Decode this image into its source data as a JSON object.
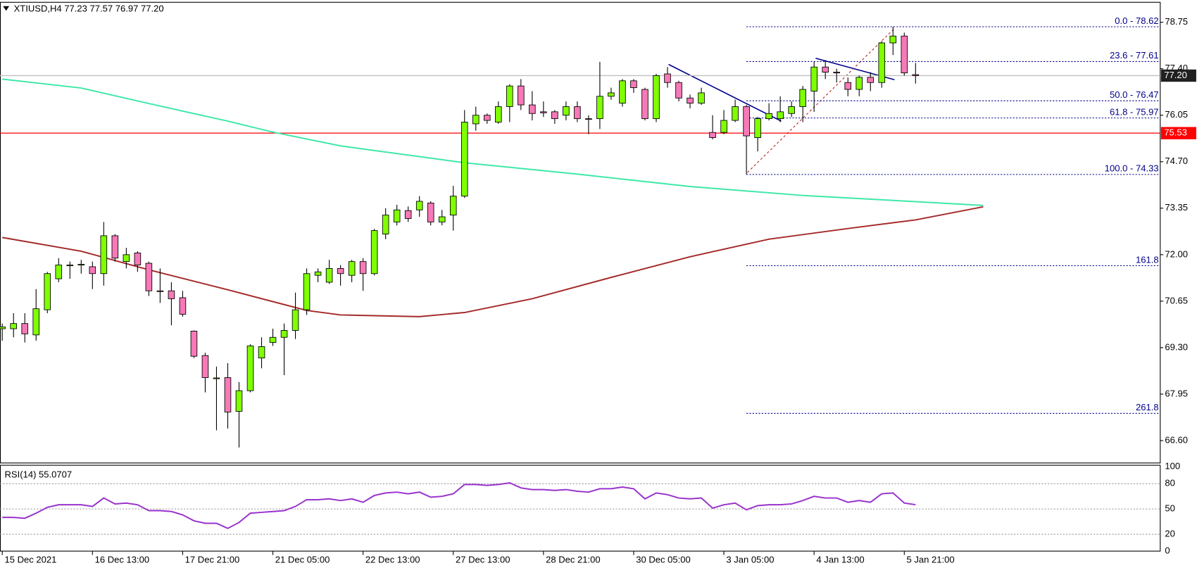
{
  "chart_data": {
    "type": "candlestick",
    "header": "XTIUSD,H4  77.23 77.57 76.97 77.20",
    "xlim": [
      -0.2,
      102.7
    ],
    "ylim": [
      65.95,
      79.33
    ],
    "xticks": [
      {
        "value": 0,
        "label": "15 Dec 2021"
      },
      {
        "value": 8,
        "label": "16 Dec 13:00"
      },
      {
        "value": 16,
        "label": "17 Dec 21:00"
      },
      {
        "value": 24,
        "label": "21 Dec 05:00"
      },
      {
        "value": 32,
        "label": "22 Dec 13:00"
      },
      {
        "value": 40,
        "label": "27 Dec 13:00"
      },
      {
        "value": 48,
        "label": "28 Dec 21:00"
      },
      {
        "value": 56,
        "label": "30 Dec 05:00"
      },
      {
        "value": 64,
        "label": "3 Jan 05:00"
      },
      {
        "value": 72,
        "label": "4 Jan 13:00"
      },
      {
        "value": 80,
        "label": "5 Jan 21:00"
      }
    ],
    "yticks": [
      78.75,
      {
        "value": 77.4,
        "label": "77.40"
      },
      76.05,
      {
        "value": 74.7,
        "label": "74.70"
      },
      73.35,
      {
        "value": 72,
        "label": "72.00"
      },
      70.65,
      {
        "value": 69.3,
        "label": "69.30"
      },
      67.95,
      {
        "value": 66.6,
        "label": "66.60"
      }
    ],
    "up_color": "#7fff00",
    "down_color": "#f779b8",
    "open": [
      69.85,
      69.85,
      70.0,
      69.67,
      70.4,
      71.3,
      71.7,
      71.7,
      71.65,
      71.45,
      72.55,
      71.8,
      72.05,
      71.75,
      70.95,
      70.95,
      70.75,
      69.78,
      69.07,
      68.4,
      68.43,
      67.45,
      68.05,
      69.0,
      69.45,
      69.6,
      69.8,
      70.4,
      71.4,
      71.2,
      71.6,
      71.4,
      71.8,
      71.45,
      72.6,
      72.95,
      73.28,
      73.3,
      73.5,
      72.95,
      73.15,
      73.7,
      75.8,
      76.05,
      75.85,
      76.3,
      76.9,
      76.35,
      76.15,
      76.15,
      76.05,
      76.3,
      75.95,
      75.95,
      76.6,
      76.4,
      77.05,
      76.8,
      75.95,
      77.25,
      77.0,
      76.55,
      76.4,
      75.55,
      75.55,
      75.9,
      76.3,
      75.4,
      75.95,
      75.95,
      76.1,
      76.3,
      76.75,
      77.45,
      77.3,
      77.0,
      76.8,
      77.15,
      77.0,
      78.15,
      78.35,
      77.23
    ],
    "high": [
      70.0,
      70.3,
      70.3,
      71.0,
      71.5,
      71.9,
      71.8,
      71.85,
      71.8,
      72.95,
      72.6,
      72.2,
      72.1,
      71.8,
      71.6,
      71.2,
      70.95,
      69.8,
      69.15,
      68.75,
      68.85,
      68.3,
      69.4,
      69.6,
      69.85,
      70.0,
      70.9,
      71.6,
      71.6,
      71.85,
      71.7,
      71.85,
      71.9,
      72.75,
      73.35,
      73.45,
      73.4,
      73.7,
      73.55,
      73.3,
      74.0,
      76.2,
      76.3,
      76.1,
      76.45,
      76.95,
      77.1,
      76.75,
      76.45,
      76.2,
      76.45,
      76.45,
      76.05,
      77.6,
      76.85,
      77.1,
      77.1,
      76.85,
      77.25,
      77.45,
      77.05,
      76.65,
      76.85,
      76.05,
      76.2,
      76.5,
      76.35,
      76.0,
      76.4,
      76.6,
      76.45,
      76.9,
      77.6,
      77.65,
      77.4,
      77.15,
      77.2,
      77.3,
      78.2,
      78.62,
      78.45,
      77.57
    ],
    "low": [
      69.5,
      69.6,
      69.45,
      69.5,
      70.3,
      71.2,
      71.3,
      71.45,
      71.0,
      71.1,
      71.8,
      71.6,
      71.5,
      70.8,
      70.6,
      69.95,
      70.2,
      69.0,
      68.0,
      66.9,
      66.95,
      66.4,
      68.0,
      68.7,
      69.35,
      68.5,
      69.55,
      70.25,
      71.2,
      71.15,
      71.1,
      71.2,
      70.95,
      71.4,
      72.45,
      72.85,
      72.95,
      73.1,
      72.85,
      72.85,
      72.7,
      73.65,
      75.6,
      75.8,
      75.8,
      75.85,
      76.2,
      75.9,
      76.0,
      75.8,
      75.9,
      75.85,
      75.5,
      75.65,
      76.5,
      76.3,
      76.7,
      75.9,
      75.85,
      76.85,
      76.45,
      76.25,
      76.35,
      75.35,
      75.5,
      75.85,
      74.33,
      75.0,
      75.9,
      75.85,
      76.0,
      75.85,
      76.15,
      77.1,
      77.0,
      76.6,
      76.6,
      76.75,
      76.85,
      77.8,
      77.2,
      76.97
    ],
    "close": [
      69.9,
      70.0,
      69.7,
      70.43,
      71.45,
      71.7,
      71.7,
      71.72,
      71.45,
      72.55,
      71.9,
      72.0,
      71.7,
      70.95,
      70.93,
      70.72,
      70.27,
      69.05,
      68.43,
      68.42,
      67.43,
      68.05,
      69.35,
      69.33,
      69.6,
      69.8,
      70.4,
      71.45,
      71.5,
      71.6,
      71.45,
      71.8,
      71.45,
      72.7,
      73.15,
      73.3,
      73.05,
      73.55,
      72.95,
      73.1,
      73.7,
      75.85,
      76.05,
      75.9,
      76.3,
      76.9,
      76.35,
      76.1,
      76.12,
      75.95,
      76.3,
      75.95,
      75.93,
      76.6,
      76.7,
      77.05,
      76.85,
      75.95,
      77.2,
      77.0,
      76.55,
      76.4,
      76.7,
      75.4,
      75.9,
      76.3,
      75.45,
      75.95,
      76.1,
      76.15,
      76.3,
      76.8,
      77.45,
      77.3,
      77.28,
      76.8,
      77.15,
      77.0,
      78.15,
      78.35,
      77.28,
      77.2
    ],
    "series": [
      {
        "color": "#3ee8a8",
        "x": [
          0,
          7,
          13,
          20,
          24,
          30,
          41,
          51,
          61,
          71,
          81,
          87
        ],
        "values": [
          77.1,
          76.84,
          76.39,
          75.88,
          75.56,
          75.16,
          74.67,
          74.34,
          73.98,
          73.72,
          73.54,
          73.43
        ]
      },
      {
        "color": "#a52a2a",
        "x": [
          0,
          7,
          13,
          20,
          27,
          30,
          37,
          41,
          47,
          54,
          61,
          68,
          75,
          81,
          87
        ],
        "values": [
          72.5,
          72.1,
          71.56,
          70.98,
          70.38,
          70.25,
          70.2,
          70.32,
          70.72,
          71.34,
          71.94,
          72.45,
          72.76,
          73.01,
          73.39
        ]
      }
    ],
    "levels": [
      {
        "value": 77.2,
        "label": "77.20",
        "color": "#c0c0c0",
        "box": "#202020"
      },
      {
        "value": 75.53,
        "label": "75.53",
        "color": "#ff0000",
        "box": "#ff0000"
      }
    ],
    "fib_start": 66,
    "fib_color": "#00008b",
    "fib": [
      {
        "value": 78.62,
        "label": "0.0 - 78.62"
      },
      {
        "value": 77.61,
        "label": "23.6 - 77.61"
      },
      {
        "value": 76.47,
        "label": "50.0 - 76.47"
      },
      {
        "value": 75.97,
        "label": "61.8 - 75.97"
      },
      {
        "value": 74.33,
        "label": "100.0 - 74.33"
      },
      {
        "value": 71.68,
        "label": "161.8"
      },
      {
        "value": 67.39,
        "label": "261.8"
      }
    ],
    "rsi": {
      "label": "RSI(14) 55.0707",
      "color": "#9932cc",
      "ylim": [
        0,
        100
      ],
      "yticks": [
        100,
        80,
        50,
        20,
        0
      ],
      "values": [
        40,
        40,
        39,
        45,
        52,
        55,
        55,
        55,
        53,
        63,
        56,
        57,
        55,
        48,
        48,
        47,
        43,
        36,
        33,
        33,
        27,
        34,
        45,
        46,
        47,
        48,
        53,
        61,
        61,
        62,
        60,
        62,
        58,
        66,
        69,
        70,
        68,
        70,
        64,
        65,
        68,
        79,
        79,
        78,
        79,
        81,
        75,
        73,
        73,
        72,
        73,
        71,
        70,
        74,
        74,
        76,
        74,
        62,
        69,
        67,
        63,
        62,
        63,
        51,
        55,
        57,
        49,
        54,
        55,
        55,
        56,
        60,
        65,
        63,
        63,
        58,
        60,
        58,
        68,
        69,
        57,
        55.07
      ]
    }
  }
}
